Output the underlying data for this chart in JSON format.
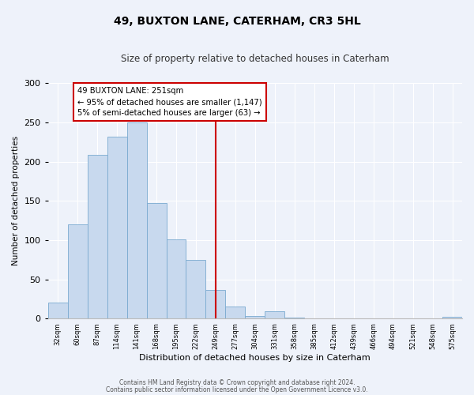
{
  "title": "49, BUXTON LANE, CATERHAM, CR3 5HL",
  "subtitle": "Size of property relative to detached houses in Caterham",
  "xlabel": "Distribution of detached houses by size in Caterham",
  "ylabel": "Number of detached properties",
  "bar_color": "#c8d9ee",
  "bar_edge_color": "#7aaad0",
  "background_color": "#eef2fa",
  "grid_color": "#ffffff",
  "bin_labels": [
    "32sqm",
    "60sqm",
    "87sqm",
    "114sqm",
    "141sqm",
    "168sqm",
    "195sqm",
    "222sqm",
    "249sqm",
    "277sqm",
    "304sqm",
    "331sqm",
    "358sqm",
    "385sqm",
    "412sqm",
    "439sqm",
    "466sqm",
    "494sqm",
    "521sqm",
    "548sqm",
    "575sqm"
  ],
  "bar_heights": [
    20,
    120,
    209,
    232,
    250,
    147,
    101,
    75,
    36,
    15,
    3,
    9,
    1,
    0,
    0,
    0,
    0,
    0,
    0,
    0,
    2
  ],
  "vline_color": "#cc0000",
  "annotation_text": "49 BUXTON LANE: 251sqm\n← 95% of detached houses are smaller (1,147)\n5% of semi-detached houses are larger (63) →",
  "annotation_box_color": "#ffffff",
  "annotation_box_edge_color": "#cc0000",
  "ylim": [
    0,
    300
  ],
  "yticks": [
    0,
    50,
    100,
    150,
    200,
    250,
    300
  ],
  "footer_line1": "Contains HM Land Registry data © Crown copyright and database right 2024.",
  "footer_line2": "Contains public sector information licensed under the Open Government Licence v3.0."
}
